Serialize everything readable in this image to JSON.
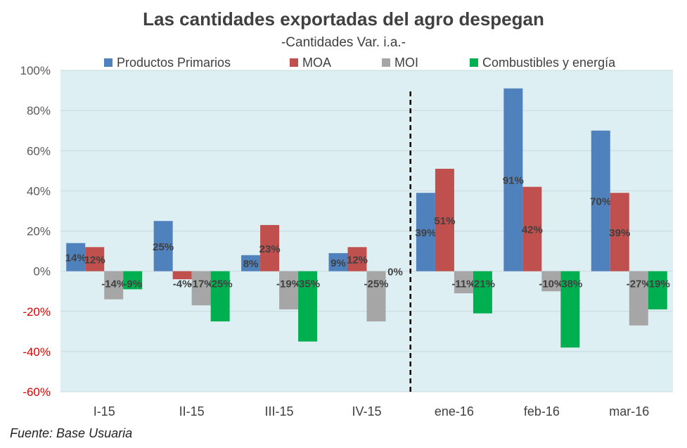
{
  "title": "Las cantidades exportadas del agro despegan",
  "subtitle": "-Cantidades Var. i.a.-",
  "source": "Fuente: Base Usuaria",
  "colors": {
    "plot_background": "#deeff4",
    "gridline": "#c9d9de",
    "positive_axis_label": "#595959",
    "negative_axis_label": "#e00000",
    "divider": "#000000"
  },
  "chart_data": {
    "type": "bar",
    "title": "Las cantidades exportadas del agro despegan",
    "subtitle": "-Cantidades Var. i.a.-",
    "categories": [
      "I-15",
      "II-15",
      "III-15",
      "IV-15",
      "ene-16",
      "feb-16",
      "mar-16"
    ],
    "series": [
      {
        "name": "Productos Primarios",
        "color": "#4f81bd",
        "values": [
          14,
          25,
          8,
          9,
          39,
          91,
          70
        ],
        "labels": [
          "14%",
          "25%",
          "8%",
          "9%",
          "39%",
          "91%",
          "70%"
        ]
      },
      {
        "name": "MOA",
        "color": "#c0504d",
        "values": [
          12,
          -4,
          23,
          12,
          51,
          42,
          39
        ],
        "labels": [
          "12%",
          "-4%",
          "23%",
          "12%",
          "51%",
          "42%",
          "39%"
        ]
      },
      {
        "name": "MOI",
        "color": "#a6a6a6",
        "values": [
          -14,
          -17,
          -19,
          -25,
          -11,
          -10,
          -27
        ],
        "labels": [
          "-14%",
          "-17%",
          "-19%",
          "-25%",
          "-11%",
          "-10%",
          "-27%"
        ]
      },
      {
        "name": "Combustibles y energía",
        "color": "#00b050",
        "values": [
          -9,
          -25,
          -35,
          0,
          -21,
          -38,
          -19
        ],
        "labels": [
          "-9%",
          "-25%",
          "-35%",
          "0%",
          "-21%",
          "-38%",
          "-19%"
        ]
      }
    ],
    "y_ticks": [
      "100%",
      "80%",
      "60%",
      "40%",
      "20%",
      "0%",
      "-20%",
      "-40%",
      "-60%"
    ],
    "y_tick_values": [
      100,
      80,
      60,
      40,
      20,
      0,
      -20,
      -40,
      -60
    ],
    "ylim": [
      -60,
      100
    ],
    "grid": true,
    "legend_position": "top",
    "divider_after_category": "IV-15",
    "xlabel": "",
    "ylabel": ""
  }
}
